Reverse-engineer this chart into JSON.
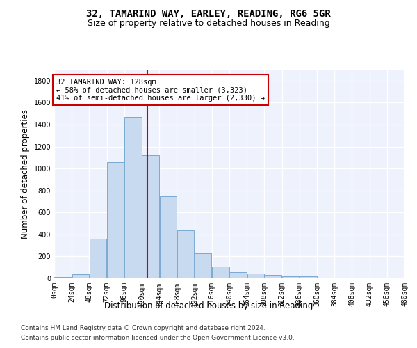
{
  "title_line1": "32, TAMARIND WAY, EARLEY, READING, RG6 5GR",
  "title_line2": "Size of property relative to detached houses in Reading",
  "xlabel": "Distribution of detached houses by size in Reading",
  "ylabel": "Number of detached properties",
  "bar_color": "#c8daf0",
  "bar_edge_color": "#7aaad0",
  "property_size": 128,
  "vline_color": "#cc0000",
  "annotation_text": "32 TAMARIND WAY: 128sqm\n← 58% of detached houses are smaller (3,323)\n41% of semi-detached houses are larger (2,330) →",
  "annotation_box_color": "#ffffff",
  "annotation_box_edge_color": "#cc0000",
  "footer_line1": "Contains HM Land Registry data © Crown copyright and database right 2024.",
  "footer_line2": "Contains public sector information licensed under the Open Government Licence v3.0.",
  "bin_edges": [
    0,
    24,
    48,
    72,
    96,
    120,
    144,
    168,
    192,
    216,
    240,
    264,
    288,
    312,
    336,
    360,
    384,
    408,
    432,
    456,
    480
  ],
  "bar_heights": [
    10,
    35,
    360,
    1060,
    1470,
    1120,
    750,
    435,
    225,
    110,
    55,
    45,
    30,
    20,
    20,
    5,
    5,
    5,
    3,
    2
  ],
  "ylim": [
    0,
    1900
  ],
  "xlim": [
    0,
    480
  ],
  "yticks": [
    0,
    200,
    400,
    600,
    800,
    1000,
    1200,
    1400,
    1600,
    1800
  ],
  "xtick_labels": [
    "0sqm",
    "24sqm",
    "48sqm",
    "72sqm",
    "96sqm",
    "120sqm",
    "144sqm",
    "168sqm",
    "192sqm",
    "216sqm",
    "240sqm",
    "264sqm",
    "288sqm",
    "312sqm",
    "336sqm",
    "360sqm",
    "384sqm",
    "408sqm",
    "432sqm",
    "456sqm",
    "480sqm"
  ],
  "background_color": "#eef2fc",
  "grid_color": "#ffffff",
  "title_fontsize": 10,
  "subtitle_fontsize": 9,
  "axis_label_fontsize": 8.5,
  "tick_fontsize": 7,
  "footer_fontsize": 6.5,
  "annotation_fontsize": 7.5
}
